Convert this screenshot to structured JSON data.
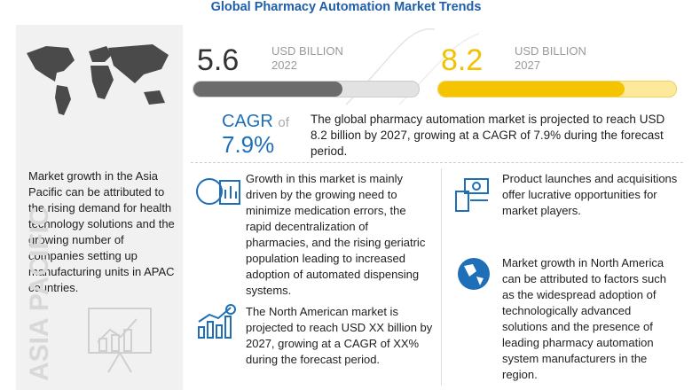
{
  "header": {
    "title": "Global Pharmacy Automation Market Trends"
  },
  "stats": [
    {
      "value": "5.6",
      "unit": "USD BILLION",
      "year": "2022"
    },
    {
      "value": "8.2",
      "unit": "USD BILLION",
      "year": "2027"
    }
  ],
  "cagr": {
    "label": "CAGR",
    "connector": "of",
    "value": "7.9%"
  },
  "summary": "The global pharmacy automation market is projected to reach USD 8.2 billion by 2027, growing at a CAGR of 7.9% during the forecast period.",
  "left_panel": {
    "text": "Market growth in the Asia Pacific can be attributed to the rising demand for health technology solutions and the growing number of companies setting up manufacturing units in APAC countries.",
    "region": "ASIA PACIFIC"
  },
  "insights": [
    "Growth in this market is mainly driven by the growing need to minimize medication errors, the rapid decentralization of pharmacies, and the rising geriatric population leading to increased adoption of automated dispensing systems.",
    "The North American market is projected to reach USD XX billion by 2027, growing at a CAGR of XX% during the forecast period.",
    "Product launches and acquisitions offer lucrative opportunities for market players.",
    "Market growth in North America can be attributed to factors such as the widespread adoption of technologically advanced solutions and the presence of leading pharmacy automation system manufacturers in the region."
  ]
}
